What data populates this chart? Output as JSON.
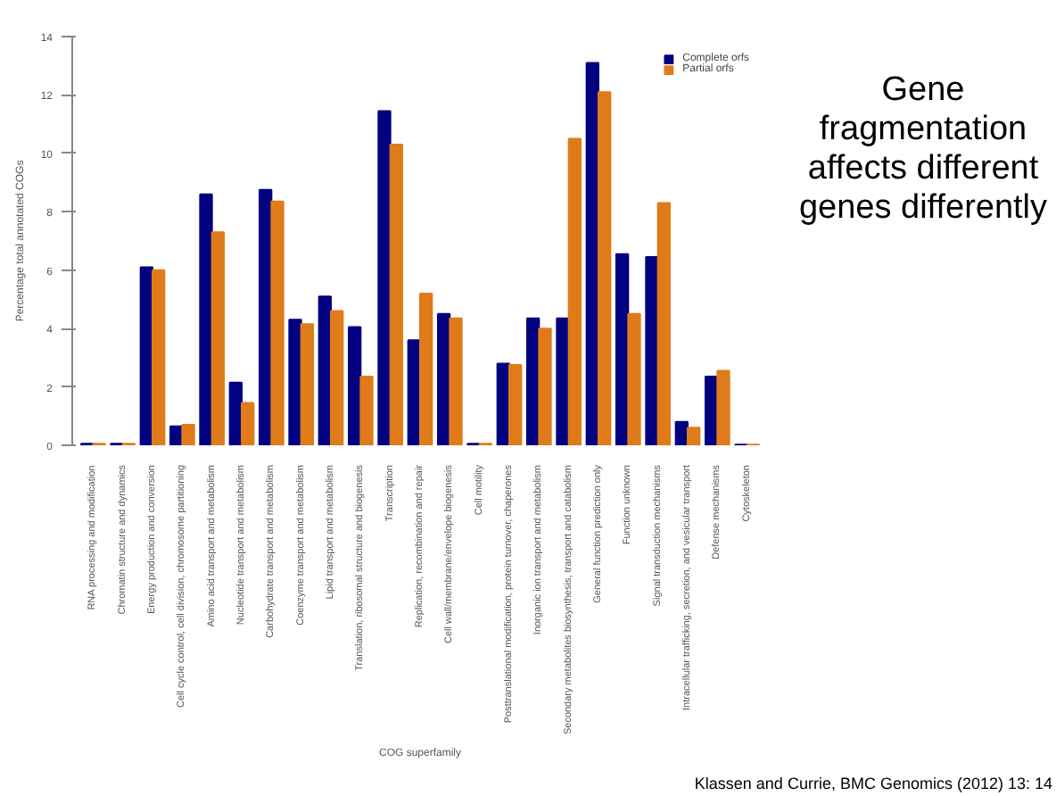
{
  "chart_data": {
    "type": "bar",
    "title": "Gene fragmentation affects different genes differently",
    "xlabel": "COG superfamily",
    "ylabel": "Percentage total annotated COGs",
    "categories": [
      "RNA processing and modification",
      "Chromatin structure and dynamics",
      "Energy production and conversion",
      "Cell cycle control, cell division, chromosome partitioning",
      "Amino acid transport and metabolism",
      "Nucleotide transport and metabolism",
      "Carbohydrate transport and metabolism",
      "Coenzyme transport and metabolism",
      "Lipid transport and metabolism",
      "Translation, ribosomal structure and biogenesis",
      "Transcription",
      "Replication, recombination and repair",
      "Cell wall/membrane/envelope biogenesis",
      "Cell motility",
      "Posttranslational modification, protein turnover, chaperones",
      "Inorganic ion transport and metabolism",
      "Secondary metabolites biosynthesis, transport and catabolism",
      "General function prediction only",
      "Function unknown",
      "Signal transduction mechanisms",
      "Intracellular trafficking, secretion, and vesicular transport",
      "Defense mechanisms",
      "Cytoskeleton"
    ],
    "series": [
      {
        "name": "Complete orfs",
        "color": "#000080",
        "values": [
          0.05,
          0.05,
          6.1,
          0.65,
          8.6,
          2.15,
          8.75,
          4.3,
          5.1,
          4.05,
          11.45,
          3.6,
          4.5,
          0.05,
          2.8,
          4.35,
          4.35,
          13.1,
          6.55,
          6.45,
          0.8,
          2.35,
          0.02
        ]
      },
      {
        "name": "Partial orfs",
        "color": "#e07b1a",
        "values": [
          0.05,
          0.05,
          6.0,
          0.7,
          7.3,
          1.45,
          8.35,
          4.15,
          4.6,
          2.35,
          10.3,
          5.2,
          4.35,
          0.05,
          2.75,
          4.0,
          10.5,
          12.1,
          4.5,
          8.3,
          0.6,
          2.55,
          0.02
        ]
      }
    ],
    "ylim": [
      0,
      14
    ],
    "yticks": [
      0,
      2,
      4,
      6,
      8,
      10,
      12,
      14
    ],
    "legend": "top right",
    "grid": false,
    "annotations": [
      "Klassen and Currie, BMC Genomics (2012) 13: 14"
    ]
  }
}
